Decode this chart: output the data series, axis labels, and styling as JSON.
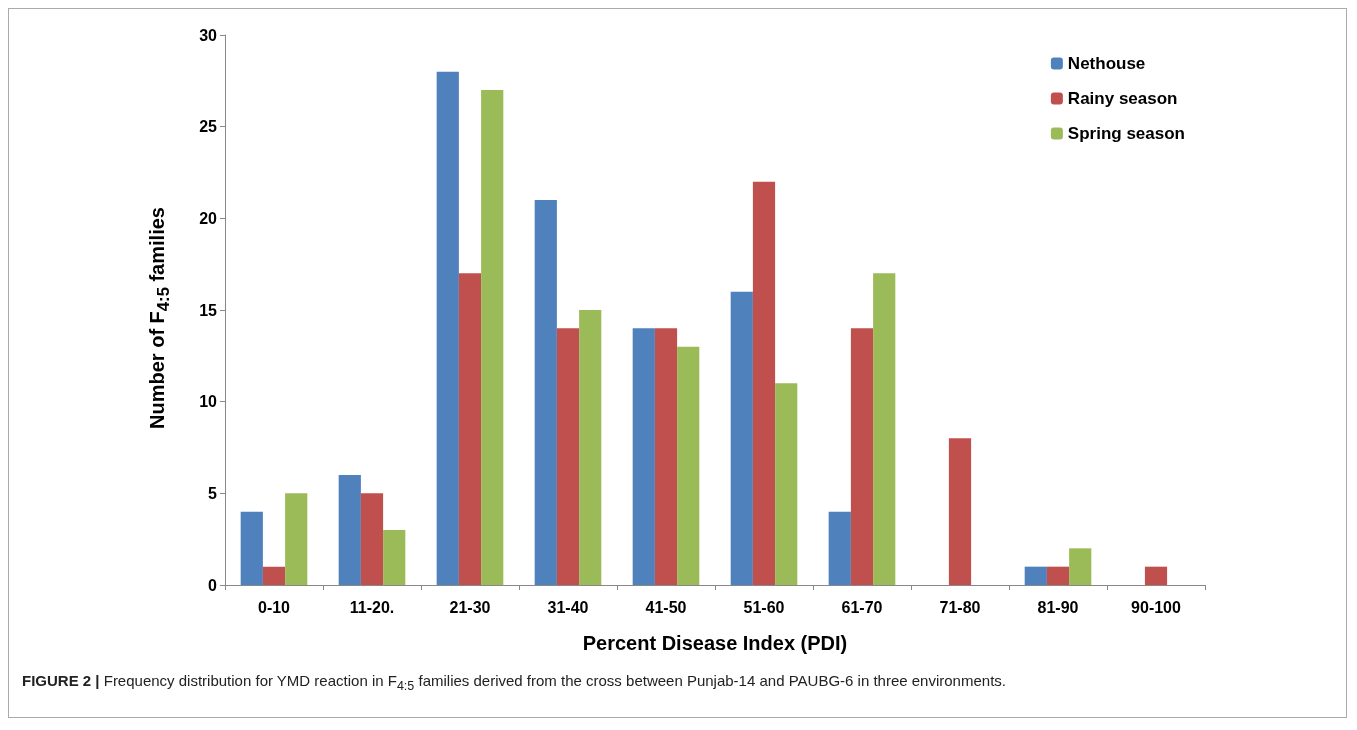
{
  "chart_data": {
    "type": "bar",
    "xlabel": "Percent Disease Index (PDI)",
    "ylabel": "Number of F$_{4:5}$ families",
    "annotations": [
      "FIGURE 2 | Frequency distribution for YMD reaction in F$_{4:5}$ families derived from the cross between Punjab-14 and PAUBG-6 in three environments."
    ],
    "categories": [
      "0-10",
      "11-20.",
      "21-30",
      "31-40",
      "41-50",
      "51-60",
      "61-70",
      "71-80",
      "81-90",
      "90-100"
    ],
    "series": [
      {
        "name": "Nethouse",
        "color": "#4f81bd",
        "values": [
          4,
          6,
          28,
          21,
          14,
          16,
          4,
          0,
          1,
          0
        ]
      },
      {
        "name": "Rainy season",
        "color": "#c0504d",
        "values": [
          1,
          5,
          17,
          14,
          14,
          22,
          14,
          8,
          1,
          1
        ]
      },
      {
        "name": "Spring season",
        "color": "#9bbb59",
        "values": [
          5,
          3,
          27,
          15,
          13,
          11,
          17,
          0,
          2,
          0
        ]
      }
    ],
    "ylim": [
      0,
      30
    ],
    "yticks": [
      0,
      5,
      10,
      15,
      20,
      25,
      30
    ],
    "grid": false,
    "legend": "top right"
  }
}
